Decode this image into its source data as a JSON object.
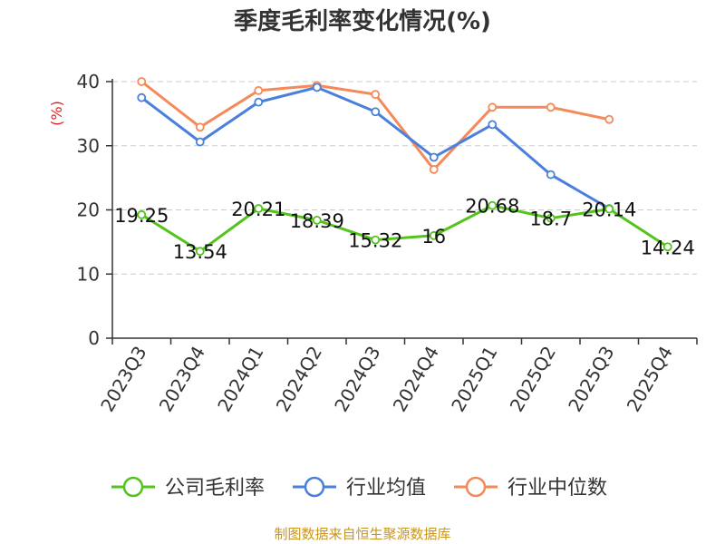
{
  "title": "季度毛利率变化情况(%)",
  "unit_label": "(%)",
  "source": "制图数据来自恒生聚源数据库",
  "colors": {
    "unit": "#e02020",
    "source": "#c8961e",
    "grid": "#cccccc",
    "axis": "#333333"
  },
  "chart_data": {
    "type": "line",
    "categories": [
      "2023Q3",
      "2023Q4",
      "2024Q1",
      "2024Q2",
      "2024Q3",
      "2024Q4",
      "2025Q1",
      "2025Q2",
      "2025Q3",
      "2025Q4"
    ],
    "ylim": [
      0,
      40
    ],
    "yticks": [
      0,
      10,
      20,
      30,
      40
    ],
    "grid": true,
    "legend": "bottom",
    "series": [
      {
        "name": "公司毛利率",
        "color": "#52c41a",
        "values": [
          19.25,
          13.54,
          20.21,
          18.39,
          15.32,
          16,
          20.68,
          18.7,
          20.14,
          14.24
        ],
        "labels": [
          "19.25",
          "13.54",
          "20.21",
          "18.39",
          "15.32",
          "16",
          "20.68",
          "18.7",
          "20.14",
          "14.24"
        ],
        "show_labels": true
      },
      {
        "name": "行业均值",
        "color": "#4a7fdc",
        "values": [
          37.5,
          30.6,
          36.8,
          39.1,
          35.3,
          28.2,
          33.3,
          25.5,
          20.2,
          null
        ],
        "show_labels": false
      },
      {
        "name": "行业中位数",
        "color": "#f4895a",
        "values": [
          40.0,
          32.9,
          38.6,
          39.4,
          38.0,
          26.3,
          36.0,
          36.0,
          34.1,
          null
        ],
        "show_labels": false
      }
    ]
  }
}
